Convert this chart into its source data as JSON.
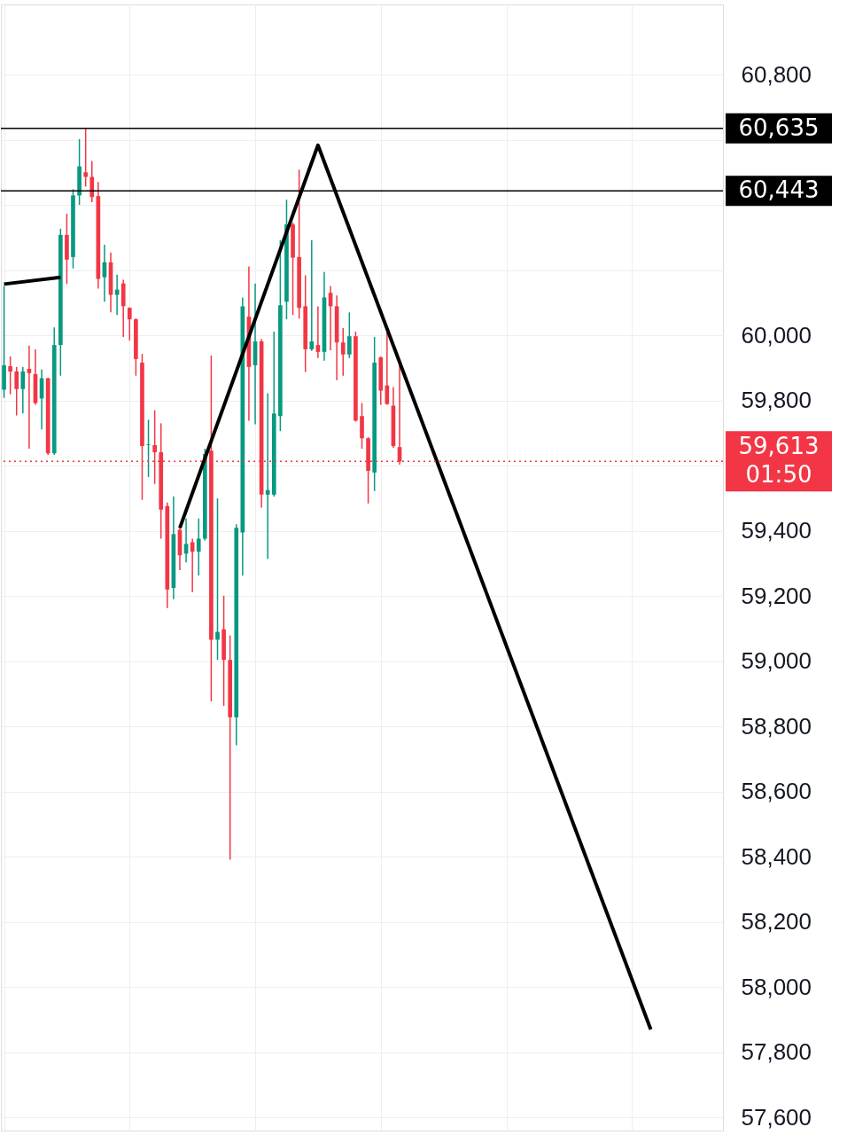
{
  "chart_data": {
    "type": "candlestick",
    "categories": [
      null,
      null,
      null,
      null,
      null,
      null,
      null,
      null,
      null,
      null,
      null,
      null,
      null,
      null,
      null,
      null,
      null,
      null,
      null,
      null,
      null,
      null,
      null,
      null,
      null,
      null,
      null,
      null,
      null,
      null,
      null,
      null,
      null,
      null,
      null,
      null,
      null,
      null,
      null,
      null,
      null,
      null,
      null,
      null,
      null,
      null,
      null,
      null,
      null,
      null,
      null,
      null,
      null,
      null,
      null,
      null,
      null,
      null,
      null,
      null,
      null,
      null,
      null,
      null,
      null,
      null,
      null,
      null,
      null,
      null,
      null,
      null,
      null,
      null,
      null,
      null,
      null,
      null,
      null,
      null,
      null,
      null,
      null,
      null,
      null,
      null,
      null,
      null,
      null,
      null,
      null,
      null,
      null,
      null,
      null,
      null,
      null,
      null,
      null,
      null,
      null,
      null,
      null,
      null,
      null,
      null,
      null,
      null,
      null,
      null,
      null,
      null,
      null,
      null,
      null
    ],
    "ohlc": [
      [
        59833,
        60151,
        59808,
        59908
      ],
      [
        59905,
        59935,
        59819,
        59889
      ],
      [
        59889,
        59903,
        59754,
        59835
      ],
      [
        59835,
        59903,
        59760,
        59889
      ],
      [
        59897,
        59968,
        59652,
        59884
      ],
      [
        59881,
        59957,
        59787,
        59792
      ],
      [
        59806,
        59895,
        59711,
        59868
      ],
      [
        59868,
        59870,
        59633,
        59638
      ],
      [
        59638,
        60024,
        59633,
        59970
      ],
      [
        59970,
        60327,
        59876,
        60308
      ],
      [
        60308,
        60373,
        60157,
        60232
      ],
      [
        60240,
        60448,
        60205,
        60429
      ],
      [
        60429,
        60602,
        60400,
        60518
      ],
      [
        60500,
        60635,
        60456,
        60486
      ],
      [
        60486,
        60535,
        60408,
        60424
      ],
      [
        60427,
        60470,
        60143,
        60173
      ],
      [
        60178,
        60278,
        60103,
        60224
      ],
      [
        60224,
        60254,
        60070,
        60124
      ],
      [
        60124,
        60186,
        60062,
        60140
      ],
      [
        60159,
        60170,
        59995,
        60089
      ],
      [
        60084,
        60086,
        59984,
        60049
      ],
      [
        60049,
        60052,
        59876,
        59927
      ],
      [
        59916,
        59943,
        59495,
        59660
      ],
      [
        59663,
        59741,
        59565,
        59665
      ],
      [
        59663,
        59770,
        59544,
        59641
      ],
      [
        59641,
        59730,
        59376,
        59465
      ],
      [
        59476,
        59487,
        59163,
        59220
      ],
      [
        59225,
        59506,
        59190,
        59390
      ],
      [
        59403,
        59414,
        59279,
        59325
      ],
      [
        59330,
        59438,
        59303,
        59360
      ],
      [
        59365,
        59376,
        59212,
        59336
      ],
      [
        59336,
        59438,
        59263,
        59376
      ],
      [
        59376,
        59652,
        59370,
        59636
      ],
      [
        59646,
        59938,
        58877,
        59066
      ],
      [
        59066,
        59500,
        59004,
        59090
      ],
      [
        59098,
        59201,
        58863,
        59004
      ],
      [
        59004,
        59079,
        58391,
        58828
      ],
      [
        58828,
        59420,
        58742,
        59409
      ],
      [
        59395,
        60116,
        59263,
        60089
      ],
      [
        60057,
        60211,
        59738,
        59903
      ],
      [
        59908,
        60159,
        59727,
        59981
      ],
      [
        59981,
        59989,
        59471,
        59511
      ],
      [
        59511,
        59822,
        59314,
        59525
      ],
      [
        59511,
        60011,
        59505,
        59760
      ],
      [
        59752,
        60292,
        59706,
        60092
      ],
      [
        60103,
        60416,
        60049,
        60340
      ],
      [
        60340,
        60346,
        60062,
        60238
      ],
      [
        60240,
        60508,
        60051,
        60084
      ],
      [
        60089,
        60184,
        59887,
        59957
      ],
      [
        59957,
        60292,
        59952,
        59981
      ],
      [
        59970,
        60089,
        59930,
        59949
      ],
      [
        59949,
        60194,
        59922,
        60116
      ],
      [
        60130,
        60151,
        59954,
        60089
      ],
      [
        60089,
        60122,
        59862,
        59978
      ],
      [
        59978,
        60022,
        59876,
        59941
      ],
      [
        59941,
        60070,
        59930,
        59997
      ],
      [
        59997,
        60011,
        59735,
        59738
      ],
      [
        59752,
        59792,
        59652,
        59684
      ],
      [
        59684,
        59687,
        59484,
        59584
      ],
      [
        59579,
        59995,
        59522,
        59916
      ],
      [
        59932,
        59935,
        59787,
        59830
      ],
      [
        59846,
        60008,
        59787,
        59789
      ],
      [
        59784,
        59841,
        59655,
        59660
      ],
      [
        59657,
        59908,
        59603,
        59613
      ],
      null,
      null,
      null,
      null,
      null,
      null,
      null,
      null,
      null,
      null,
      null,
      null,
      null,
      null,
      null,
      null,
      null,
      null,
      null,
      null,
      null,
      null,
      null,
      null,
      null,
      null,
      null,
      null,
      null,
      null,
      null,
      null,
      null,
      null,
      null,
      null,
      null,
      null,
      null,
      null,
      null,
      null,
      null,
      null,
      null,
      null,
      null,
      null,
      null,
      null,
      null
    ],
    "colors": [
      "#089981",
      "#f23645",
      "#f23645",
      "#089981",
      "#f23645",
      "#f23645",
      "#089981",
      "#f23645",
      "#089981",
      "#089981",
      "#f23645",
      "#089981",
      "#089981",
      "#f23645",
      "#f23645",
      "#f23645",
      "#089981",
      "#f23645",
      "#089981",
      "#f23645",
      "#f23645",
      "#f23645",
      "#f23645",
      "#089981",
      "#f23645",
      "#f23645",
      "#f23645",
      "#089981",
      "#f23645",
      "#089981",
      "#f23645",
      "#089981",
      "#089981",
      "#f23645",
      "#089981",
      "#f23645",
      "#f23645",
      "#089981",
      "#089981",
      "#f23645",
      "#089981",
      "#f23645",
      "#089981",
      "#089981",
      "#089981",
      "#089981",
      "#f23645",
      "#f23645",
      "#f23645",
      "#089981",
      "#f23645",
      "#089981",
      "#f23645",
      "#f23645",
      "#f23645",
      "#089981",
      "#f23645",
      "#f23645",
      "#f23645",
      "#089981",
      "#f23645",
      "#f23645",
      "#f23645",
      "#f23645",
      null,
      null,
      null,
      null,
      null,
      null,
      null,
      null,
      null,
      null,
      null,
      null,
      null,
      null,
      null,
      null,
      null,
      null,
      null,
      null,
      null,
      null,
      null,
      null,
      null,
      null,
      null,
      null,
      null,
      null,
      null,
      null,
      null,
      null,
      null,
      null,
      null,
      null,
      null,
      null,
      null,
      null,
      null,
      null,
      null,
      null,
      null,
      null,
      null,
      null,
      null
    ],
    "series": [
      {
        "type": "line",
        "color": "#000000",
        "values": [
          60157,
          null,
          null,
          null,
          null,
          null,
          null,
          null,
          null,
          60178,
          null,
          null,
          null,
          null,
          null,
          null,
          null,
          null,
          null,
          null,
          null,
          null,
          null,
          null,
          null,
          null,
          null,
          null,
          null,
          null,
          null,
          null,
          null,
          null,
          null,
          null,
          null,
          null,
          null,
          null,
          null,
          null,
          null,
          null,
          null,
          null,
          null,
          null,
          null,
          null,
          null,
          null,
          null,
          null,
          null,
          null,
          null,
          null,
          null,
          null,
          null,
          null,
          null,
          null,
          null,
          null,
          null,
          null,
          null,
          null,
          null,
          null,
          null,
          null,
          null,
          null,
          null,
          null,
          null,
          null,
          null,
          null,
          null,
          null,
          null,
          null,
          null,
          null,
          null,
          null,
          null,
          null,
          null,
          null,
          null,
          null,
          null,
          null,
          null,
          null,
          null,
          null,
          null,
          null,
          null,
          null,
          null,
          null,
          null,
          null,
          null,
          null,
          null,
          null,
          null
        ]
      },
      {
        "type": "line",
        "color": "#000000",
        "values": [
          null,
          null,
          null,
          null,
          null,
          null,
          null,
          null,
          null,
          null,
          null,
          null,
          null,
          null,
          null,
          null,
          null,
          null,
          null,
          null,
          null,
          null,
          null,
          null,
          null,
          null,
          null,
          null,
          59409,
          null,
          null,
          null,
          null,
          null,
          null,
          null,
          null,
          null,
          null,
          null,
          null,
          null,
          null,
          null,
          null,
          null,
          null,
          null,
          null,
          null,
          60583,
          null,
          null,
          null,
          null,
          null,
          null,
          null,
          null,
          null,
          null,
          null,
          null,
          null,
          null,
          null,
          null,
          null,
          null,
          null,
          null,
          null,
          null,
          null,
          null,
          null,
          null,
          null,
          null,
          null,
          null,
          null,
          null,
          null,
          null,
          null,
          null,
          null,
          null,
          null,
          null,
          null,
          null,
          null,
          null,
          null,
          null,
          null,
          null,
          null,
          null,
          null,
          null,
          57870,
          null,
          null,
          null,
          null,
          null,
          null,
          null,
          null,
          null,
          null,
          null
        ]
      }
    ],
    "ylim": [
      57560,
      61015
    ],
    "yticks": [
      {
        "value": 57600,
        "label": "57,600"
      },
      {
        "value": 57800,
        "label": "57,800"
      },
      {
        "value": 58000,
        "label": "58,000"
      },
      {
        "value": 58200,
        "label": "58,200"
      },
      {
        "value": 58400,
        "label": "58,400"
      },
      {
        "value": 58600,
        "label": "58,600"
      },
      {
        "value": 58800,
        "label": "58,800"
      },
      {
        "value": 59000,
        "label": "59,000"
      },
      {
        "value": 59200,
        "label": "59,200"
      },
      {
        "value": 59400,
        "label": "59,400"
      },
      {
        "value": 59600,
        "label": null
      },
      {
        "value": 59800,
        "label": "59,800"
      },
      {
        "value": 60000,
        "label": "60,000"
      },
      {
        "value": 60200,
        "label": null
      },
      {
        "value": 60400,
        "label": null
      },
      {
        "value": 60600,
        "label": null
      },
      {
        "value": 60800,
        "label": "60,800"
      }
    ],
    "ref_lines": [
      {
        "axis": "y",
        "value": 60635,
        "label": "60,635",
        "color": "#000000",
        "line_style": "solid"
      },
      {
        "axis": "y",
        "value": 60443,
        "label": "60,443",
        "color": "#000000",
        "line_style": "solid"
      },
      {
        "axis": "y",
        "value": 59613,
        "label": "59,613\n01:50",
        "color": "#f23645",
        "line_style": "dotted"
      }
    ],
    "grid": true
  }
}
